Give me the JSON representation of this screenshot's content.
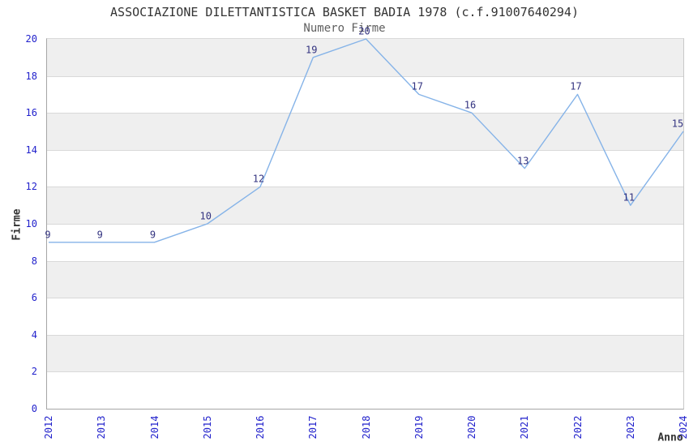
{
  "chart_data": {
    "type": "line",
    "title": "ASSOCIAZIONE DILETTANTISTICA BASKET BADIA 1978 (c.f.91007640294)",
    "subtitle": "Numero Firme",
    "xlabel": "Anno",
    "ylabel": "Firme",
    "categories": [
      "2012",
      "2013",
      "2014",
      "2015",
      "2016",
      "2017",
      "2018",
      "2019",
      "2020",
      "2021",
      "2022",
      "2023",
      "2024"
    ],
    "values": [
      9,
      9,
      9,
      10,
      12,
      19,
      20,
      17,
      16,
      13,
      17,
      11,
      15
    ],
    "ylim": [
      0,
      20
    ],
    "yticks": [
      0,
      2,
      4,
      6,
      8,
      10,
      12,
      14,
      16,
      18,
      20
    ],
    "grid": "alternating-horizontal-bands",
    "legend": null,
    "point_labels_visible": true,
    "colors": {
      "line": "#85b3e8",
      "tick_label": "#2222cc",
      "value_label": "#333380",
      "band": "#efefef",
      "band_alt": "#ffffff",
      "gridline": "#d9d9d9",
      "axis": "#a6a6a6",
      "title": "#333333",
      "subtitle": "#606060",
      "axis_label": "#333333",
      "background": "#ffffff"
    }
  }
}
